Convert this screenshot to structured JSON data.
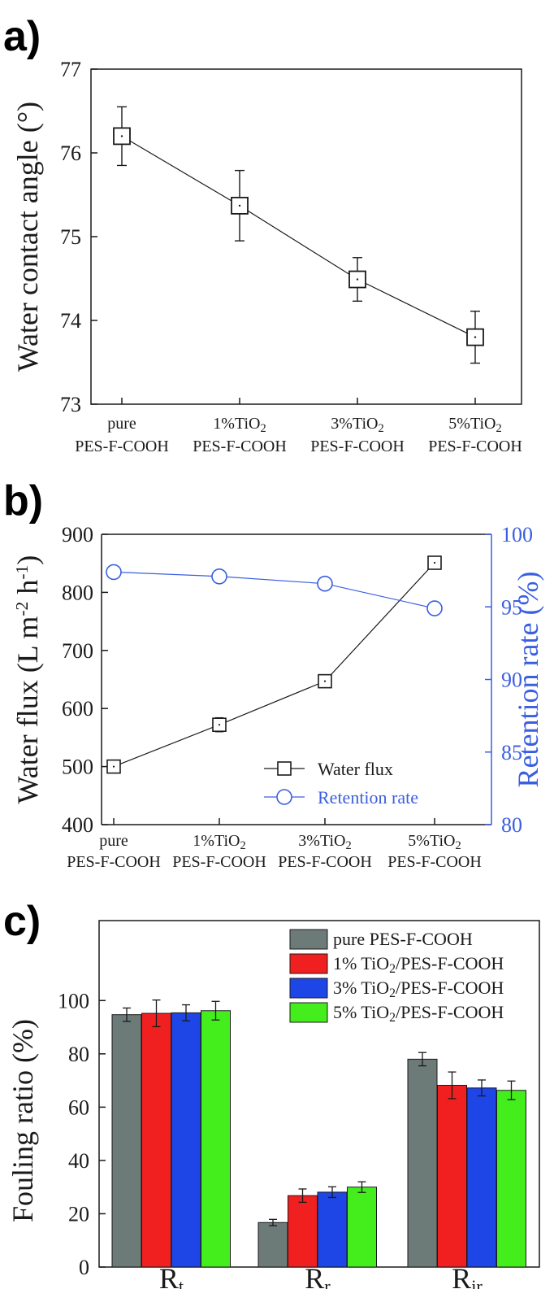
{
  "chart_data": [
    {
      "panel": "a)",
      "type": "line",
      "xlabel": "",
      "ylabel": "Water contact angle (°)",
      "categories": [
        [
          "pure",
          "PES-F-COOH"
        ],
        [
          "1%TiO2",
          "PES-F-COOH"
        ],
        [
          "3%TiO2",
          "PES-F-COOH"
        ],
        [
          "5%TiO2",
          "PES-F-COOH"
        ]
      ],
      "ylim": [
        73,
        77
      ],
      "yticks": [
        73,
        74,
        75,
        76,
        77
      ],
      "series": [
        {
          "values": [
            76.2,
            75.37,
            74.49,
            73.8
          ],
          "errors": [
            0.35,
            0.42,
            0.26,
            0.31
          ],
          "marker": "square",
          "color": "#1a1a1a"
        }
      ],
      "grid": false
    },
    {
      "panel": "b)",
      "type": "line",
      "xlabel": "",
      "ylabel": "Water flux (L m-2 h-1)",
      "y2label": "Retention rate (%)",
      "categories": [
        [
          "pure",
          "PES-F-COOH"
        ],
        [
          "1%TiO2",
          "PES-F-COOH"
        ],
        [
          "3%TiO2",
          "PES-F-COOH"
        ],
        [
          "5%TiO2",
          "PES-F-COOH"
        ]
      ],
      "ylim": [
        400,
        900
      ],
      "yticks": [
        400,
        500,
        600,
        700,
        800,
        900
      ],
      "y2lim": [
        80,
        100
      ],
      "y2ticks": [
        80,
        85,
        90,
        95,
        100
      ],
      "series": [
        {
          "name": "Water flux",
          "axis": "left",
          "values": [
            500,
            572,
            647,
            851
          ],
          "errors": [
            9,
            12,
            10,
            10
          ],
          "marker": "square",
          "color": "#1a1a1a"
        },
        {
          "name": "Retention rate",
          "axis": "right",
          "values": [
            97.4,
            97.1,
            96.6,
            94.9
          ],
          "errors": [
            0,
            0,
            0,
            0
          ],
          "marker": "circle",
          "color": "#3a5fe0"
        }
      ],
      "legend": "bottom-right",
      "grid": false
    },
    {
      "panel": "c)",
      "type": "bar",
      "xlabel": "",
      "ylabel": "Fouling ratio (%)",
      "categories": [
        [
          "R",
          "t"
        ],
        [
          "R",
          "r"
        ],
        [
          "R",
          "ir"
        ]
      ],
      "ylim": [
        0,
        130
      ],
      "yticks": [
        0,
        20,
        40,
        60,
        80,
        100
      ],
      "series": [
        {
          "name": "pure PES-F-COOH",
          "values": [
            94.7,
            16.7,
            78.0
          ],
          "errors": [
            2.5,
            1.2,
            2.5
          ],
          "color": "#6c7a78"
        },
        {
          "name": "1% TiO2/PES-F-COOH",
          "values": [
            95.2,
            26.8,
            68.2
          ],
          "errors": [
            5.0,
            2.5,
            5.0
          ],
          "color": "#f02020"
        },
        {
          "name": "3% TiO2/PES-F-COOH",
          "values": [
            95.4,
            28.1,
            67.2
          ],
          "errors": [
            3.0,
            2.0,
            3.0
          ],
          "color": "#1e46e6"
        },
        {
          "name": "5% TiO2/PES-F-COOH",
          "values": [
            96.2,
            30.0,
            66.3
          ],
          "errors": [
            3.5,
            2.0,
            3.5
          ],
          "color": "#44ee1c"
        }
      ],
      "legend": "top-right",
      "grid": false
    }
  ]
}
